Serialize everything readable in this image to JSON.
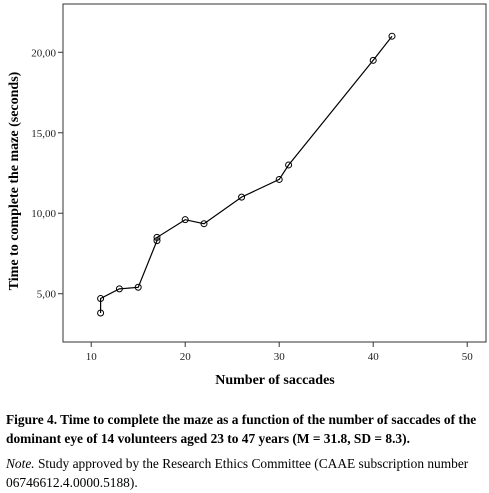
{
  "chart_data": {
    "type": "line",
    "xlabel": "Number of saccades",
    "ylabel": "Time to complete the maze (seconds)",
    "xlim": [
      7,
      52
    ],
    "ylim": [
      2.0,
      23.0
    ],
    "xticks": [
      10,
      20,
      30,
      40,
      50
    ],
    "yticks": [
      5.0,
      10.0,
      15.0,
      20.0
    ],
    "xtick_labels": [
      "10",
      "20",
      "30",
      "40",
      "50"
    ],
    "ytick_labels": [
      "5,00",
      "10,00",
      "15,00",
      "20,00"
    ],
    "grid": false,
    "legend": "none",
    "series": [
      {
        "x": [
          11,
          11,
          13,
          15,
          17,
          17,
          20,
          22,
          26,
          30,
          31,
          40,
          42
        ],
        "y": [
          3.8,
          4.7,
          5.3,
          5.4,
          8.3,
          8.5,
          9.6,
          9.35,
          11.0,
          12.1,
          13.0,
          19.5,
          21.0
        ]
      }
    ]
  },
  "caption": {
    "title": "Figure 4. Time to complete the maze as a function of the number of saccades of the dominant eye of 14 volunteers aged 23 to 47 years (M = 31.8, SD = 8.3).",
    "note_label": "Note.",
    "note_text": " Study approved by the Research Ethics Committee (CAAE subscription number 06746612.4.0000.5188)."
  }
}
